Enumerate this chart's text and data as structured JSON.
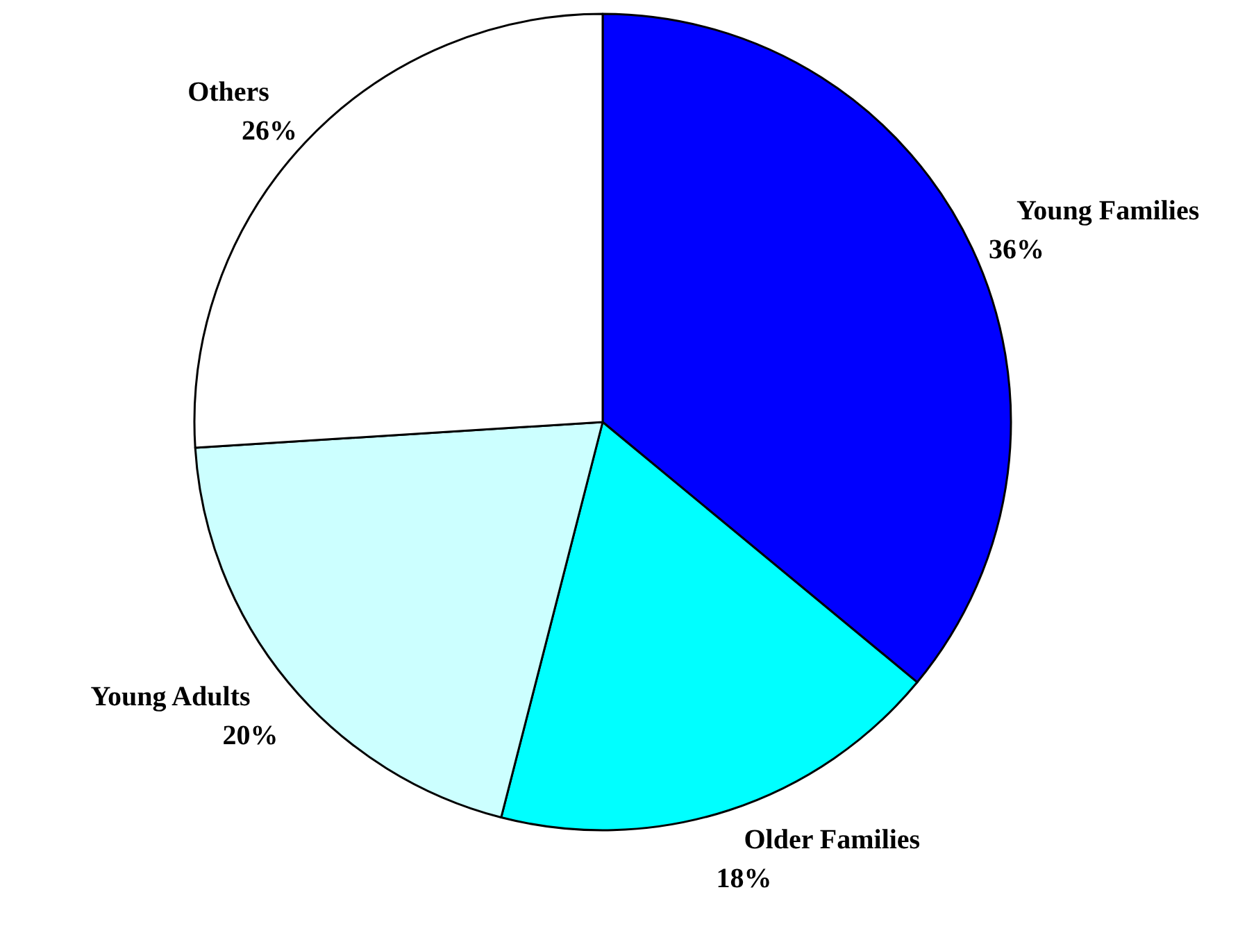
{
  "chart_data": {
    "type": "pie",
    "categories": [
      "Young Families",
      "Older Families",
      "Young Adults",
      "Others"
    ],
    "values": [
      36,
      18,
      20,
      26
    ],
    "colors": [
      "#0000ff",
      "#00ffff",
      "#ccffff",
      "#ffffff"
    ],
    "value_labels": [
      "36%",
      "18%",
      "20%",
      "26%"
    ]
  }
}
